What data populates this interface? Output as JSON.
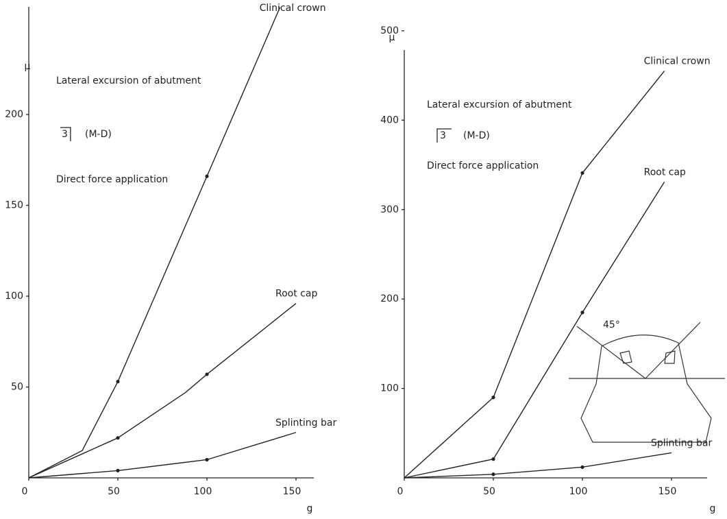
{
  "chart_data": [
    {
      "type": "line",
      "y_label": "μ",
      "x_label": "g",
      "note_title": "Lateral excursion of abutment",
      "tooth": "3",
      "direction": "(M-D)",
      "note_method": "Direct force application",
      "xlim": [
        0,
        160
      ],
      "xticks": [
        0,
        50,
        100,
        150
      ],
      "ylim": [
        0,
        260
      ],
      "yticks": [
        50,
        100,
        150,
        200
      ],
      "series": [
        {
          "name": "Clinical crown",
          "color": "#222222",
          "x": [
            0,
            30,
            50,
            100,
            141
          ],
          "values": [
            0,
            15,
            53,
            166,
            259
          ]
        },
        {
          "name": "Root cap",
          "color": "#222222",
          "x": [
            0,
            50,
            88,
            100,
            150
          ],
          "values": [
            0,
            22,
            47,
            57,
            96
          ]
        },
        {
          "name": "Splinting bar",
          "color": "#222222",
          "x": [
            0,
            50,
            100,
            150
          ],
          "values": [
            0,
            4,
            10,
            25
          ]
        }
      ]
    },
    {
      "type": "line",
      "y_label": "μ",
      "x_label": "g",
      "note_title": "Lateral excursion of abutment",
      "tooth": "3",
      "direction": "(M-D)",
      "note_method": "Direct force application",
      "inset_angle": "45°",
      "xlim": [
        0,
        170
      ],
      "xticks": [
        0,
        50,
        100,
        150
      ],
      "ylim": [
        0,
        480
      ],
      "yticks": [
        100,
        200,
        300,
        400,
        500
      ],
      "series": [
        {
          "name": "Clinical crown",
          "color": "#222222",
          "x": [
            0,
            50,
            100,
            146
          ],
          "values": [
            0,
            90,
            341,
            455
          ]
        },
        {
          "name": "Root cap",
          "color": "#222222",
          "x": [
            0,
            50,
            100,
            146
          ],
          "values": [
            0,
            21,
            185,
            331
          ]
        },
        {
          "name": "Splinting bar",
          "color": "#222222",
          "x": [
            0,
            50,
            100,
            150
          ],
          "values": [
            0,
            4,
            12,
            28
          ]
        }
      ]
    }
  ]
}
